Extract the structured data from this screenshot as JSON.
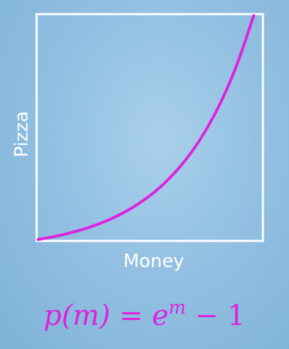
{
  "chart_data": {
    "type": "line",
    "title": "",
    "xlabel": "Money",
    "ylabel": "Pizza",
    "x": [
      0,
      0.25,
      0.5,
      0.75,
      1.0,
      1.25,
      1.5,
      1.75,
      2.0,
      2.25,
      2.5,
      2.75,
      3.0
    ],
    "series": [
      {
        "values": [
          0,
          0.284,
          0.649,
          1.117,
          1.718,
          2.49,
          3.482,
          4.755,
          6.389,
          8.488,
          11.182,
          14.643,
          19.086
        ]
      }
    ],
    "xlim": [
      0,
      3
    ],
    "ylim": [
      0,
      19.086
    ],
    "grid": false,
    "colors": {
      "curve": "#dd22dd",
      "frame": "#ffffff"
    }
  },
  "equation": {
    "lhs": "p(m)",
    "equals": "=",
    "base": "e",
    "exponent": "m",
    "minus": "−",
    "constant": "1"
  }
}
